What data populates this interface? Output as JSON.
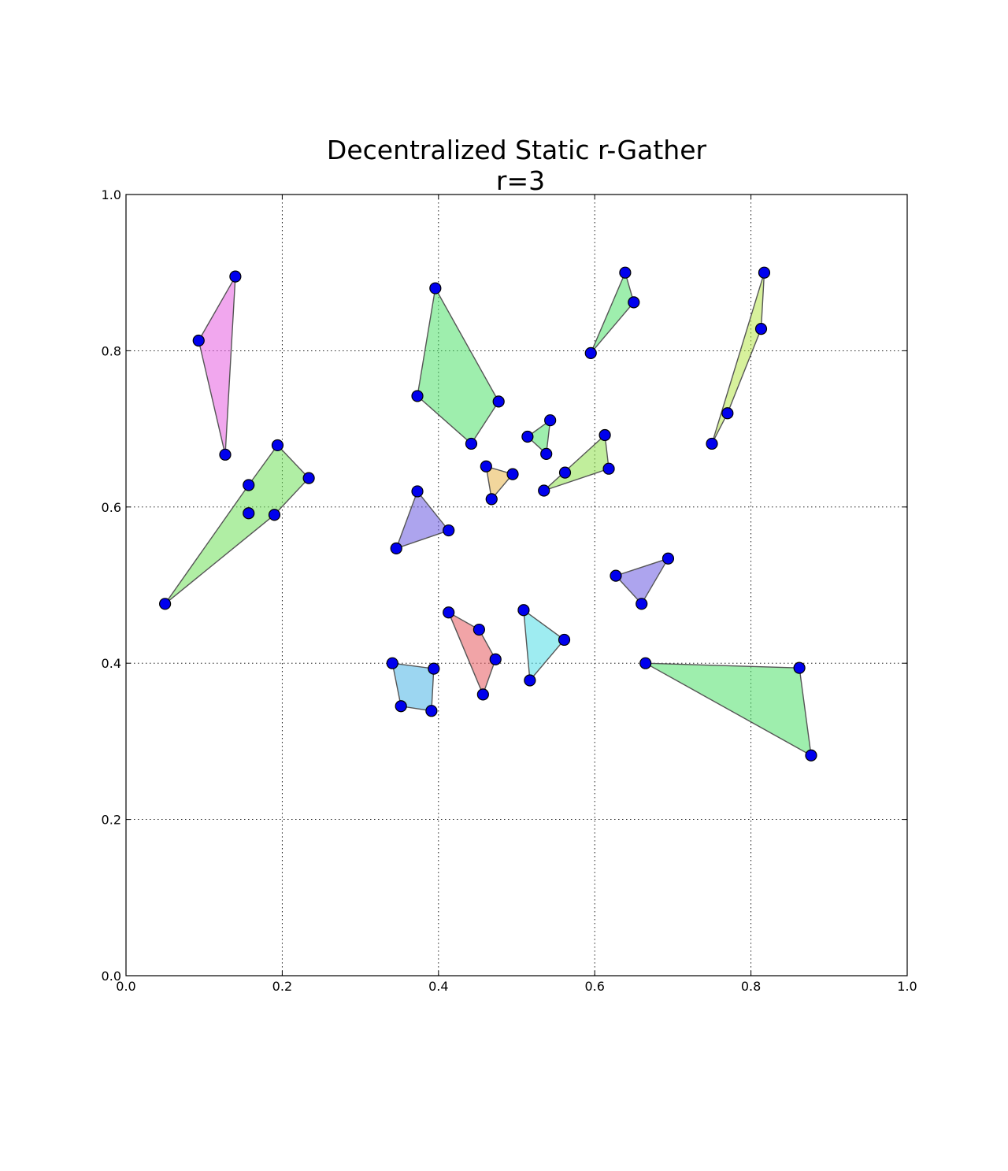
{
  "chart_data": {
    "type": "scatter",
    "title": "Decentralized Static r-Gather",
    "subtitle": "r=3",
    "xlabel": "",
    "ylabel": "",
    "xlim": [
      0.0,
      1.0
    ],
    "ylim": [
      0.0,
      1.0
    ],
    "xticks": [
      "0.0",
      "0.2",
      "0.4",
      "0.6",
      "0.8",
      "1.0"
    ],
    "yticks": [
      "0.0",
      "0.2",
      "0.4",
      "0.6",
      "0.8",
      "1.0"
    ],
    "grid": true,
    "point_color": "#0000ee",
    "clusters": [
      {
        "color": "#e55ee0",
        "points": [
          [
            0.14,
            0.895
          ],
          [
            0.093,
            0.813
          ],
          [
            0.127,
            0.667
          ]
        ]
      },
      {
        "color": "#6fe05a",
        "points": [
          [
            0.194,
            0.679
          ],
          [
            0.234,
            0.637
          ],
          [
            0.157,
            0.628
          ],
          [
            0.157,
            0.592
          ],
          [
            0.19,
            0.59
          ],
          [
            0.05,
            0.476
          ]
        ]
      },
      {
        "color": "#4fe06a",
        "points": [
          [
            0.396,
            0.88
          ],
          [
            0.373,
            0.742
          ],
          [
            0.477,
            0.735
          ],
          [
            0.442,
            0.681
          ]
        ]
      },
      {
        "color": "#4fe06a",
        "points": [
          [
            0.639,
            0.9
          ],
          [
            0.65,
            0.862
          ],
          [
            0.595,
            0.797
          ]
        ]
      },
      {
        "color": "#b6e64a",
        "points": [
          [
            0.817,
            0.9
          ],
          [
            0.813,
            0.828
          ],
          [
            0.77,
            0.72
          ],
          [
            0.75,
            0.681
          ]
        ]
      },
      {
        "color": "#4fe06a",
        "points": [
          [
            0.514,
            0.69
          ],
          [
            0.543,
            0.711
          ],
          [
            0.538,
            0.668
          ]
        ]
      },
      {
        "color": "#e8b44a",
        "points": [
          [
            0.461,
            0.652
          ],
          [
            0.495,
            0.642
          ],
          [
            0.468,
            0.61
          ]
        ]
      },
      {
        "color": "#8ee04a",
        "points": [
          [
            0.613,
            0.692
          ],
          [
            0.618,
            0.649
          ],
          [
            0.562,
            0.644
          ],
          [
            0.535,
            0.621
          ]
        ]
      },
      {
        "color": "#6a5ae0",
        "points": [
          [
            0.373,
            0.62
          ],
          [
            0.413,
            0.57
          ],
          [
            0.346,
            0.547
          ]
        ]
      },
      {
        "color": "#6a5ae0",
        "points": [
          [
            0.694,
            0.534
          ],
          [
            0.627,
            0.512
          ],
          [
            0.66,
            0.476
          ]
        ]
      },
      {
        "color": "#e55a5e",
        "points": [
          [
            0.413,
            0.465
          ],
          [
            0.452,
            0.443
          ],
          [
            0.473,
            0.405
          ],
          [
            0.457,
            0.36
          ]
        ]
      },
      {
        "color": "#4fdde6",
        "points": [
          [
            0.509,
            0.468
          ],
          [
            0.561,
            0.43
          ],
          [
            0.517,
            0.378
          ]
        ]
      },
      {
        "color": "#4ab5e6",
        "points": [
          [
            0.341,
            0.4
          ],
          [
            0.394,
            0.393
          ],
          [
            0.391,
            0.339
          ],
          [
            0.352,
            0.345
          ]
        ]
      },
      {
        "color": "#4fe06a",
        "points": [
          [
            0.665,
            0.4
          ],
          [
            0.862,
            0.394
          ],
          [
            0.877,
            0.282
          ]
        ]
      }
    ]
  }
}
